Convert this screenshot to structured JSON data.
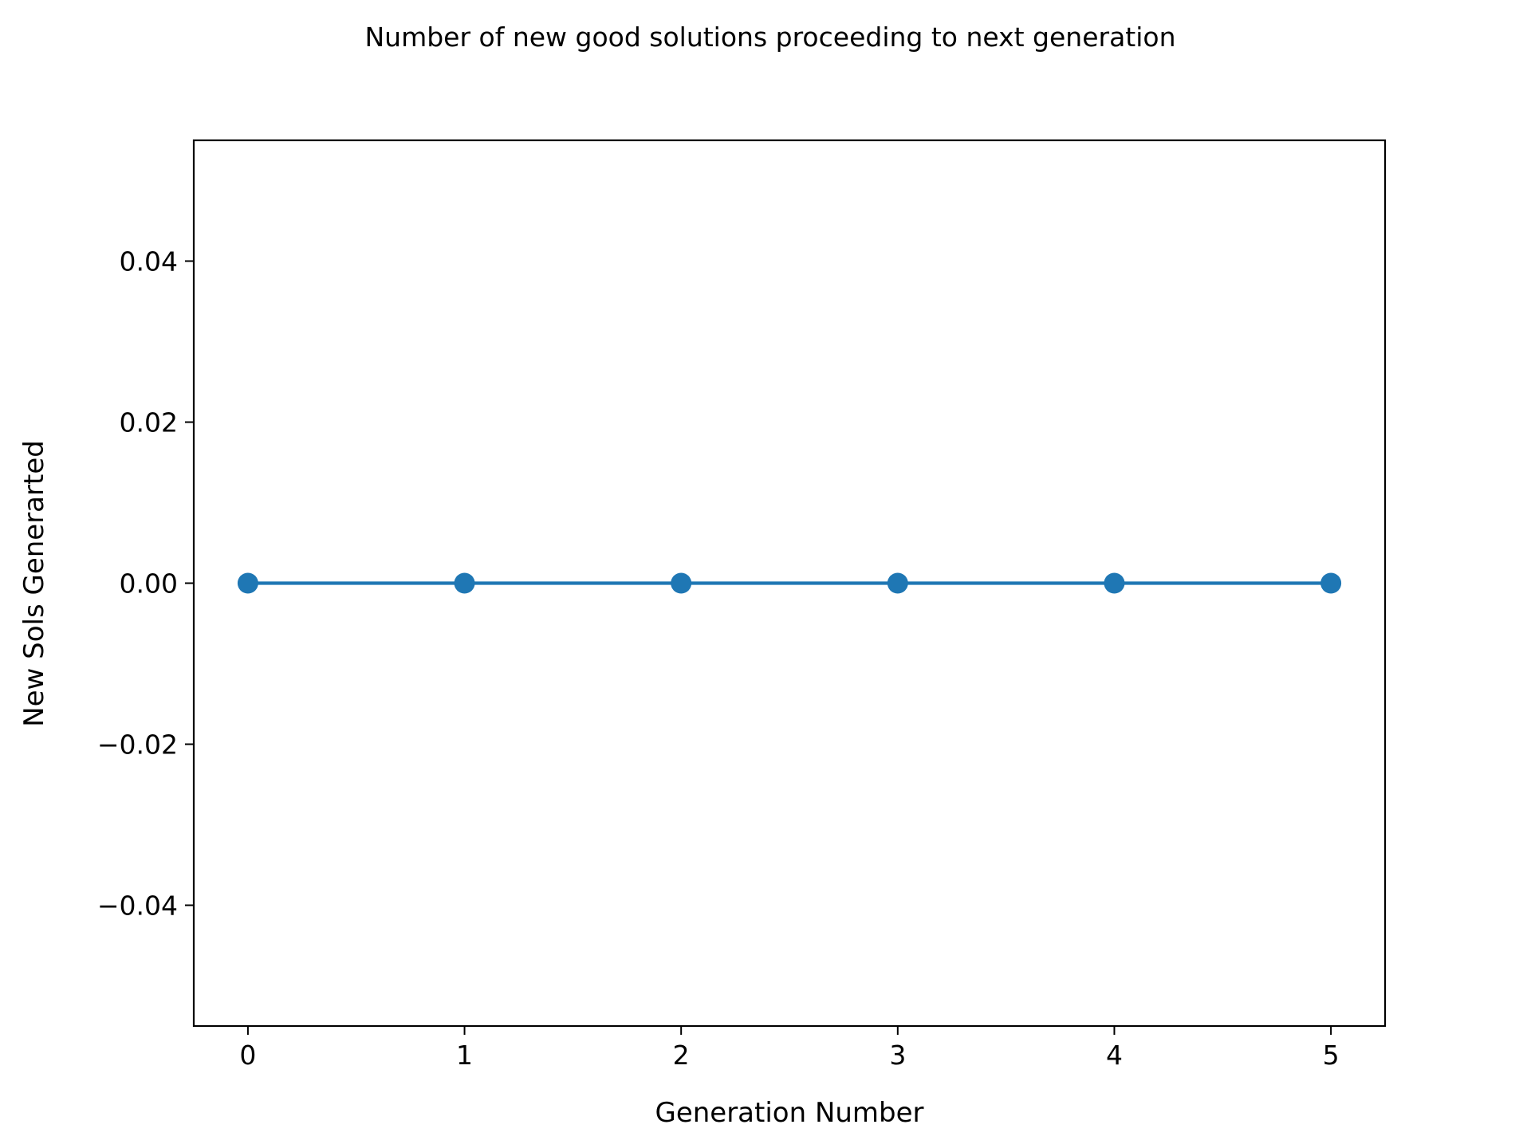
{
  "chart_data": {
    "type": "line",
    "title": "Number of new good solutions proceeding to next generation",
    "xlabel": "Generation Number",
    "ylabel": "New Sols Generarted",
    "x": [
      0,
      1,
      2,
      3,
      4,
      5
    ],
    "series": [
      {
        "values": [
          0,
          0,
          0,
          0,
          0,
          0
        ],
        "color": "#1f77b4",
        "marker": "circle"
      }
    ],
    "xlim": [
      -0.25,
      5.25
    ],
    "ylim": [
      -0.055,
      0.055
    ],
    "xticks": [
      0,
      1,
      2,
      3,
      4,
      5
    ],
    "xtick_labels": [
      "0",
      "1",
      "2",
      "3",
      "4",
      "5"
    ],
    "yticks": [
      0.04,
      0.02,
      0.0,
      -0.02,
      -0.04
    ],
    "ytick_labels": [
      "0.04",
      "0.02",
      "0.00",
      "−0.02",
      "−0.04"
    ],
    "grid": false,
    "legend": "none"
  }
}
